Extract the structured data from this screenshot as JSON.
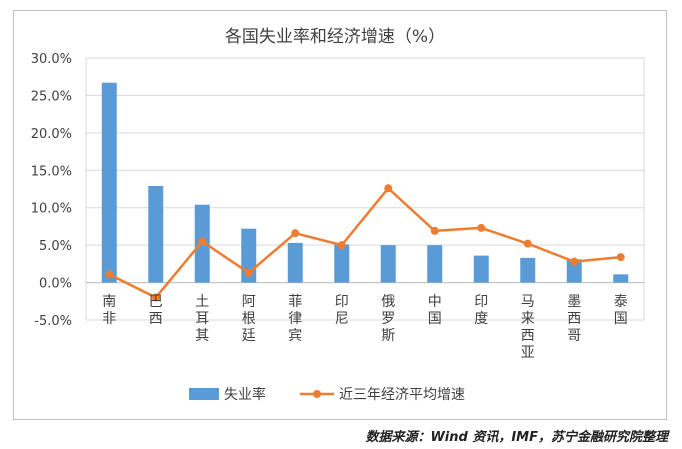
{
  "chart_data": {
    "type": "bar",
    "title": "各国失业率和经济增速（%）",
    "categories": [
      "南非",
      "巴西",
      "土耳其",
      "阿根廷",
      "菲律宾",
      "印尼",
      "俄罗斯",
      "中国",
      "印度",
      "马来西亚",
      "墨西哥",
      "泰国"
    ],
    "series": [
      {
        "name": "失业率",
        "type": "bar",
        "color": "#5b9bd5",
        "values": [
          26.7,
          12.9,
          10.4,
          7.2,
          5.3,
          5.1,
          5.0,
          5.0,
          3.6,
          3.3,
          3.1,
          1.1
        ]
      },
      {
        "name": "近三年经济平均增速",
        "type": "line",
        "color": "#ed7d31",
        "values": [
          1.1,
          -2.0,
          5.5,
          1.3,
          6.6,
          5.0,
          12.6,
          6.9,
          7.3,
          5.2,
          2.8,
          3.4
        ]
      }
    ],
    "ylim": [
      -5,
      30
    ],
    "yticks": [
      -5,
      0,
      5,
      10,
      15,
      20,
      25,
      30
    ],
    "ytick_labels": [
      "-5.0%",
      "0.0%",
      "5.0%",
      "10.0%",
      "15.0%",
      "20.0%",
      "25.0%",
      "30.0%"
    ],
    "xlabel": "",
    "ylabel": "",
    "grid": true,
    "legend": "bottom"
  },
  "source": "数据来源：Wind 资讯，IMF，苏宁金融研究院整理"
}
